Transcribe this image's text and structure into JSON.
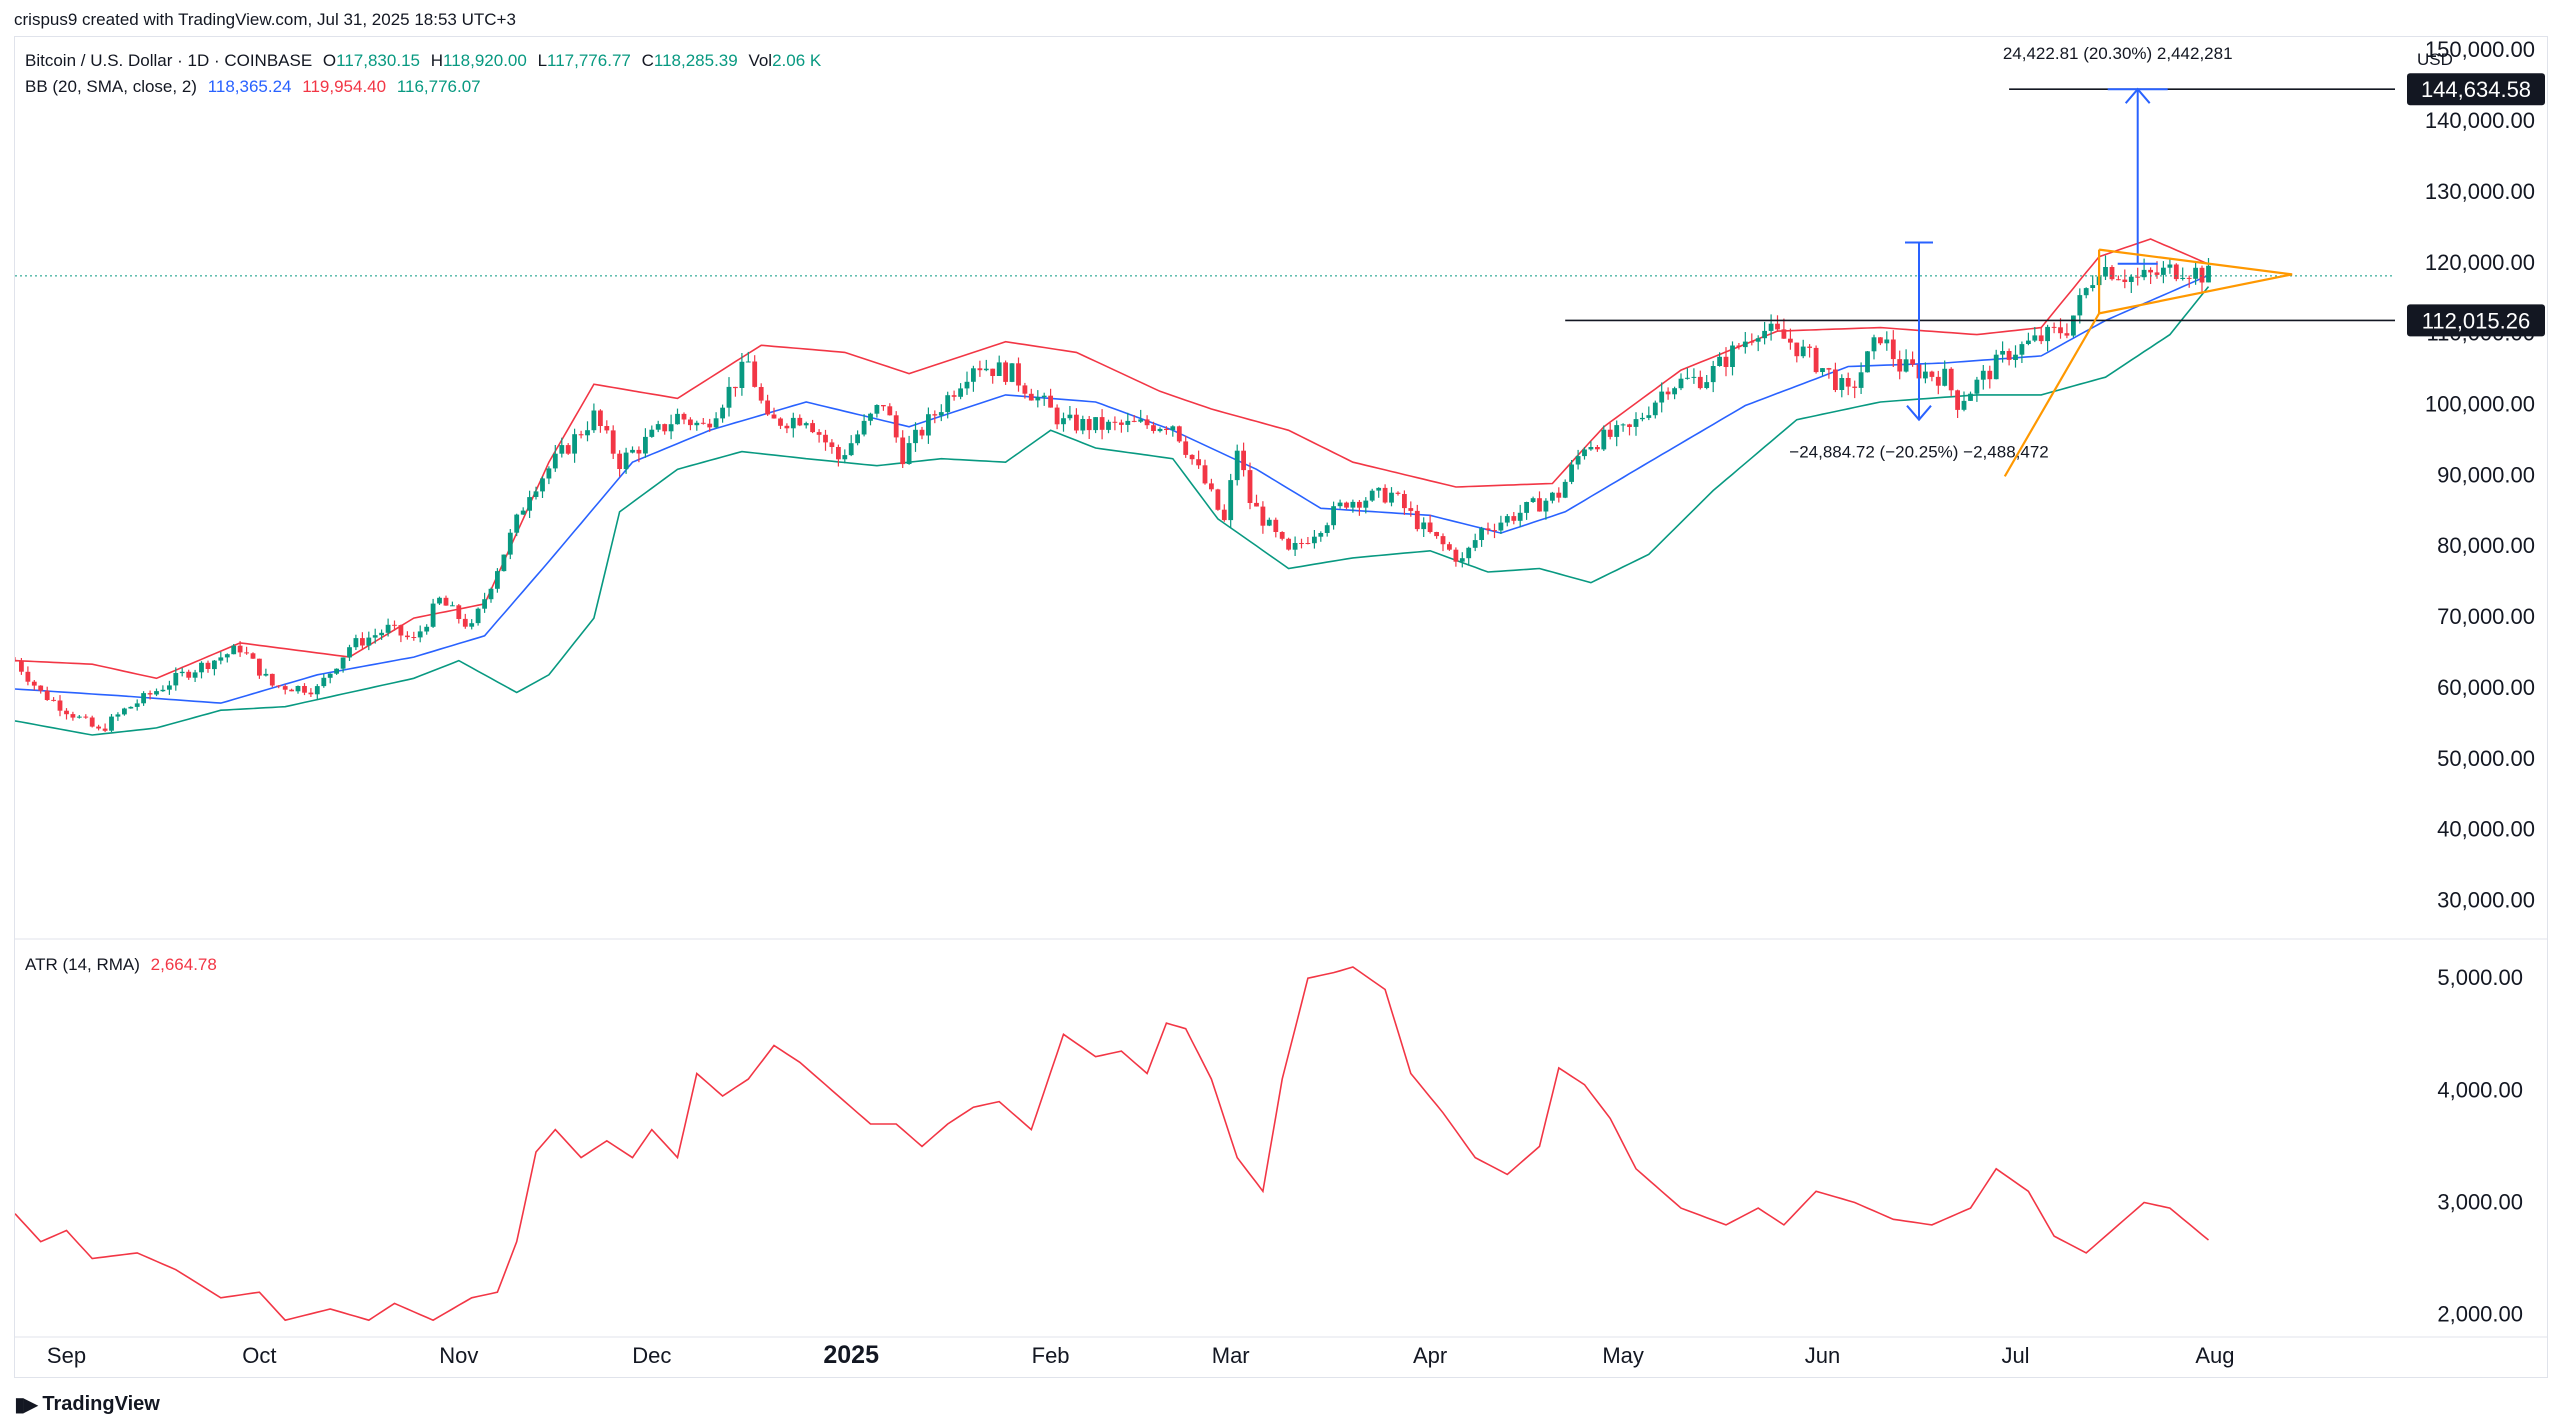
{
  "header": {
    "creator_line": "crispus9 created with TradingView.com, Jul 31, 2025 18:53 UTC+3"
  },
  "footer": {
    "logo_text": "TradingView"
  },
  "symbol": {
    "title": "Bitcoin / U.S. Dollar · 1D · COINBASE",
    "o_label": "O",
    "o_value": "117,830.15",
    "h_label": "H",
    "h_value": "118,920.00",
    "l_label": "L",
    "l_value": "117,776.77",
    "c_label": "C",
    "c_value": "118,285.39",
    "vol_label": "Vol",
    "vol_value": "2.06 K"
  },
  "bb_legend": {
    "label": "BB (20, SMA, close, 2)",
    "basis": "118,365.24",
    "upper": "119,954.40",
    "lower": "116,776.07"
  },
  "atr_legend": {
    "label": "ATR (14, RMA)",
    "value": "2,664.78"
  },
  "colors": {
    "up": "#089981",
    "down": "#f23645",
    "bb_basis": "#2962ff",
    "bb_upper": "#f23645",
    "bb_lower": "#089981",
    "atr": "#f23645",
    "measure": "#2962ff",
    "triangle": "#ff9800",
    "level_line": "#131722"
  },
  "chart_data": [
    {
      "type": "candlestick",
      "title": "Bitcoin / U.S. Dollar · 1D · COINBASE",
      "currency_label": "USD",
      "x_ticks": [
        {
          "date": "2024-09-01",
          "label": "Sep"
        },
        {
          "date": "2024-10-01",
          "label": "Oct"
        },
        {
          "date": "2024-11-01",
          "label": "Nov"
        },
        {
          "date": "2024-12-01",
          "label": "Dec"
        },
        {
          "date": "2025-01-01",
          "label": "2025",
          "bold": true
        },
        {
          "date": "2025-02-01",
          "label": "Feb"
        },
        {
          "date": "2025-03-01",
          "label": "Mar"
        },
        {
          "date": "2025-04-01",
          "label": "Apr"
        },
        {
          "date": "2025-05-01",
          "label": "May"
        },
        {
          "date": "2025-06-01",
          "label": "Jun"
        },
        {
          "date": "2025-07-01",
          "label": "Jul"
        },
        {
          "date": "2025-08-01",
          "label": "Aug"
        }
      ],
      "x_range": [
        "2024-08-24",
        "2025-08-29"
      ],
      "y_ticks": [
        30000,
        40000,
        50000,
        60000,
        70000,
        80000,
        90000,
        100000,
        110000,
        120000,
        130000,
        140000,
        150000
      ],
      "y_tick_labels": [
        "30,000.00",
        "40,000.00",
        "50,000.00",
        "60,000.00",
        "70,000.00",
        "80,000.00",
        "90,000.00",
        "100,000.00",
        "110,000.00",
        "120,000.00",
        "130,000.00",
        "140,000.00",
        "150,000.00"
      ],
      "ylim": [
        25000,
        152000
      ],
      "price_anchors": [
        [
          "2024-08-24",
          64000
        ],
        [
          "2024-08-28",
          59500
        ],
        [
          "2024-09-06",
          54000
        ],
        [
          "2024-09-10",
          57000
        ],
        [
          "2024-09-19",
          62000
        ],
        [
          "2024-09-28",
          65800
        ],
        [
          "2024-10-03",
          60500
        ],
        [
          "2024-10-10",
          60000
        ],
        [
          "2024-10-15",
          66000
        ],
        [
          "2024-10-21",
          68500
        ],
        [
          "2024-10-25",
          66800
        ],
        [
          "2024-10-29",
          72500
        ],
        [
          "2024-11-03",
          68500
        ],
        [
          "2024-11-06",
          75000
        ],
        [
          "2024-11-12",
          88000
        ],
        [
          "2024-11-22",
          98500
        ],
        [
          "2024-11-26",
          92000
        ],
        [
          "2024-12-05",
          98500
        ],
        [
          "2024-12-09",
          97000
        ],
        [
          "2024-12-16",
          106000
        ],
        [
          "2024-12-19",
          97500
        ],
        [
          "2024-12-25",
          98500
        ],
        [
          "2024-12-30",
          92500
        ],
        [
          "2025-01-06",
          100500
        ],
        [
          "2025-01-09",
          93000
        ],
        [
          "2025-01-15",
          100000
        ],
        [
          "2025-01-20",
          106000
        ],
        [
          "2025-01-26",
          104500
        ],
        [
          "2025-02-03",
          97500
        ],
        [
          "2025-02-10",
          97000
        ],
        [
          "2025-02-20",
          97500
        ],
        [
          "2025-02-25",
          89000
        ],
        [
          "2025-02-28",
          83500
        ],
        [
          "2025-03-02",
          94000
        ],
        [
          "2025-03-04",
          86500
        ],
        [
          "2025-03-10",
          79000
        ],
        [
          "2025-03-19",
          86500
        ],
        [
          "2025-03-26",
          87500
        ],
        [
          "2025-03-31",
          82500
        ],
        [
          "2025-04-06",
          78000
        ],
        [
          "2025-04-09",
          82500
        ],
        [
          "2025-04-14",
          84500
        ],
        [
          "2025-04-21",
          87500
        ],
        [
          "2025-04-25",
          94500
        ],
        [
          "2025-05-02",
          96500
        ],
        [
          "2025-05-08",
          103000
        ],
        [
          "2025-05-14",
          104000
        ],
        [
          "2025-05-22",
          111000
        ],
        [
          "2025-05-27",
          109000
        ],
        [
          "2025-06-02",
          104500
        ],
        [
          "2025-06-05",
          101500
        ],
        [
          "2025-06-10",
          110000
        ],
        [
          "2025-06-13",
          105500
        ],
        [
          "2025-06-20",
          104000
        ],
        [
          "2025-06-22",
          100500
        ],
        [
          "2025-06-30",
          107500
        ],
        [
          "2025-07-09",
          111000
        ],
        [
          "2025-07-14",
          119800
        ],
        [
          "2025-07-20",
          117800
        ],
        [
          "2025-07-27",
          119500
        ],
        [
          "2025-07-31",
          118285
        ]
      ],
      "bb_upper_anchors": [
        [
          "2024-08-24",
          64000
        ],
        [
          "2024-09-05",
          63500
        ],
        [
          "2024-09-15",
          61500
        ],
        [
          "2024-09-28",
          66500
        ],
        [
          "2024-10-15",
          64500
        ],
        [
          "2024-10-25",
          70000
        ],
        [
          "2024-11-05",
          72000
        ],
        [
          "2024-11-15",
          92000
        ],
        [
          "2024-11-22",
          103000
        ],
        [
          "2024-12-05",
          101000
        ],
        [
          "2024-12-18",
          108500
        ],
        [
          "2024-12-31",
          107500
        ],
        [
          "2025-01-10",
          104500
        ],
        [
          "2025-01-25",
          109000
        ],
        [
          "2025-02-05",
          107500
        ],
        [
          "2025-02-18",
          102000
        ],
        [
          "2025-02-26",
          99500
        ],
        [
          "2025-03-10",
          96500
        ],
        [
          "2025-03-20",
          92000
        ],
        [
          "2025-04-05",
          88500
        ],
        [
          "2025-04-20",
          89000
        ],
        [
          "2025-04-28",
          97000
        ],
        [
          "2025-05-10",
          105000
        ],
        [
          "2025-05-25",
          110500
        ],
        [
          "2025-06-10",
          111000
        ],
        [
          "2025-06-25",
          110000
        ],
        [
          "2025-07-05",
          111000
        ],
        [
          "2025-07-14",
          121000
        ],
        [
          "2025-07-22",
          123500
        ],
        [
          "2025-07-31",
          119954
        ]
      ],
      "bb_basis_anchors": [
        [
          "2024-08-24",
          60000
        ],
        [
          "2024-09-10",
          59000
        ],
        [
          "2024-09-25",
          58000
        ],
        [
          "2024-10-10",
          62000
        ],
        [
          "2024-10-25",
          64500
        ],
        [
          "2024-11-05",
          67500
        ],
        [
          "2024-11-15",
          78000
        ],
        [
          "2024-11-28",
          92000
        ],
        [
          "2024-12-10",
          96500
        ],
        [
          "2024-12-25",
          100500
        ],
        [
          "2025-01-10",
          97000
        ],
        [
          "2025-01-25",
          101500
        ],
        [
          "2025-02-08",
          100500
        ],
        [
          "2025-02-20",
          96500
        ],
        [
          "2025-03-05",
          91000
        ],
        [
          "2025-03-15",
          85500
        ],
        [
          "2025-04-01",
          84500
        ],
        [
          "2025-04-12",
          82000
        ],
        [
          "2025-04-22",
          85000
        ],
        [
          "2025-05-05",
          92000
        ],
        [
          "2025-05-20",
          100000
        ],
        [
          "2025-06-05",
          105500
        ],
        [
          "2025-06-20",
          106000
        ],
        [
          "2025-07-05",
          107000
        ],
        [
          "2025-07-15",
          112000
        ],
        [
          "2025-07-31",
          118365
        ]
      ],
      "bb_lower_anchors": [
        [
          "2024-08-24",
          55500
        ],
        [
          "2024-09-05",
          53500
        ],
        [
          "2024-09-15",
          54500
        ],
        [
          "2024-09-25",
          57000
        ],
        [
          "2024-10-05",
          57500
        ],
        [
          "2024-10-15",
          59500
        ],
        [
          "2024-10-25",
          61500
        ],
        [
          "2024-11-01",
          64000
        ],
        [
          "2024-11-10",
          59500
        ],
        [
          "2024-11-15",
          62000
        ],
        [
          "2024-11-22",
          70000
        ],
        [
          "2024-11-26",
          85000
        ],
        [
          "2024-12-05",
          91000
        ],
        [
          "2024-12-15",
          93500
        ],
        [
          "2024-12-25",
          92500
        ],
        [
          "2025-01-05",
          91500
        ],
        [
          "2025-01-15",
          92500
        ],
        [
          "2025-01-25",
          92000
        ],
        [
          "2025-02-01",
          96500
        ],
        [
          "2025-02-08",
          94000
        ],
        [
          "2025-02-20",
          92500
        ],
        [
          "2025-02-27",
          84000
        ],
        [
          "2025-03-10",
          77000
        ],
        [
          "2025-03-20",
          78500
        ],
        [
          "2025-04-01",
          79500
        ],
        [
          "2025-04-10",
          76500
        ],
        [
          "2025-04-18",
          77000
        ],
        [
          "2025-04-26",
          75000
        ],
        [
          "2025-05-05",
          79000
        ],
        [
          "2025-05-15",
          88000
        ],
        [
          "2025-05-28",
          98000
        ],
        [
          "2025-06-10",
          100500
        ],
        [
          "2025-06-25",
          101500
        ],
        [
          "2025-07-05",
          101500
        ],
        [
          "2025-07-15",
          104000
        ],
        [
          "2025-07-25",
          110000
        ],
        [
          "2025-07-31",
          116776
        ]
      ],
      "horizontal_levels": [
        {
          "price": 112015.26,
          "label": "112,015.26",
          "from": "2025-04-22"
        },
        {
          "price": 144634.58,
          "label": "144,634.58",
          "from": "2025-06-30"
        }
      ],
      "last_price_line": 118285.39,
      "measure_up": {
        "date": "2025-07-20",
        "from": 120000,
        "to": 144634.58,
        "label": "24,422.81 (20.30%) 2,442,281"
      },
      "measure_down": {
        "date": "2025-06-16",
        "from": 123000,
        "to": 98000,
        "label": "−24,884.72 (−20.25%) −2,488,472"
      },
      "triangle": {
        "apex": [
          "2025-08-13",
          118500
        ],
        "upper_start": [
          "2025-07-14",
          122000
        ],
        "lower_start": [
          "2025-07-14",
          113000
        ],
        "trend_start": [
          "2025-07-04",
          95500
        ]
      }
    },
    {
      "type": "line",
      "title": "ATR (14, RMA)",
      "y_ticks": [
        2000,
        3000,
        4000,
        5000
      ],
      "y_tick_labels": [
        "2,000.00",
        "3,000.00",
        "4,000.00",
        "5,000.00"
      ],
      "ylim": [
        1800,
        5350
      ],
      "series": [
        {
          "name": "ATR (14, RMA)",
          "points": [
            [
              "2024-08-24",
              2900
            ],
            [
              "2024-08-28",
              2650
            ],
            [
              "2024-09-01",
              2750
            ],
            [
              "2024-09-05",
              2500
            ],
            [
              "2024-09-12",
              2550
            ],
            [
              "2024-09-18",
              2400
            ],
            [
              "2024-09-25",
              2150
            ],
            [
              "2024-10-01",
              2200
            ],
            [
              "2024-10-05",
              1950
            ],
            [
              "2024-10-12",
              2050
            ],
            [
              "2024-10-18",
              1950
            ],
            [
              "2024-10-22",
              2100
            ],
            [
              "2024-10-28",
              1950
            ],
            [
              "2024-11-03",
              2150
            ],
            [
              "2024-11-07",
              2200
            ],
            [
              "2024-11-10",
              2650
            ],
            [
              "2024-11-13",
              3450
            ],
            [
              "2024-11-16",
              3650
            ],
            [
              "2024-11-20",
              3400
            ],
            [
              "2024-11-24",
              3550
            ],
            [
              "2024-11-28",
              3400
            ],
            [
              "2024-12-01",
              3650
            ],
            [
              "2024-12-05",
              3400
            ],
            [
              "2024-12-08",
              4150
            ],
            [
              "2024-12-12",
              3950
            ],
            [
              "2024-12-16",
              4100
            ],
            [
              "2024-12-20",
              4400
            ],
            [
              "2024-12-24",
              4250
            ],
            [
              "2024-12-29",
              4000
            ],
            [
              "2025-01-04",
              3700
            ],
            [
              "2025-01-08",
              3700
            ],
            [
              "2025-01-12",
              3500
            ],
            [
              "2025-01-16",
              3700
            ],
            [
              "2025-01-20",
              3850
            ],
            [
              "2025-01-24",
              3900
            ],
            [
              "2025-01-29",
              3650
            ],
            [
              "2025-02-03",
              4500
            ],
            [
              "2025-02-08",
              4300
            ],
            [
              "2025-02-12",
              4350
            ],
            [
              "2025-02-16",
              4150
            ],
            [
              "2025-02-19",
              4600
            ],
            [
              "2025-02-22",
              4550
            ],
            [
              "2025-02-26",
              4100
            ],
            [
              "2025-03-02",
              3400
            ],
            [
              "2025-03-06",
              3100
            ],
            [
              "2025-03-09",
              4100
            ],
            [
              "2025-03-13",
              5000
            ],
            [
              "2025-03-17",
              5050
            ],
            [
              "2025-03-20",
              5100
            ],
            [
              "2025-03-25",
              4900
            ],
            [
              "2025-03-29",
              4150
            ],
            [
              "2025-04-03",
              3800
            ],
            [
              "2025-04-08",
              3400
            ],
            [
              "2025-04-13",
              3250
            ],
            [
              "2025-04-18",
              3500
            ],
            [
              "2025-04-21",
              4200
            ],
            [
              "2025-04-25",
              4050
            ],
            [
              "2025-04-29",
              3750
            ],
            [
              "2025-05-03",
              3300
            ],
            [
              "2025-05-10",
              2950
            ],
            [
              "2025-05-17",
              2800
            ],
            [
              "2025-05-22",
              2950
            ],
            [
              "2025-05-26",
              2800
            ],
            [
              "2025-05-31",
              3100
            ],
            [
              "2025-06-06",
              3000
            ],
            [
              "2025-06-12",
              2850
            ],
            [
              "2025-06-18",
              2800
            ],
            [
              "2025-06-24",
              2950
            ],
            [
              "2025-06-28",
              3300
            ],
            [
              "2025-07-03",
              3100
            ],
            [
              "2025-07-07",
              2700
            ],
            [
              "2025-07-12",
              2550
            ],
            [
              "2025-07-17",
              2800
            ],
            [
              "2025-07-21",
              3000
            ],
            [
              "2025-07-25",
              2950
            ],
            [
              "2025-07-31",
              2665
            ]
          ]
        }
      ]
    }
  ]
}
